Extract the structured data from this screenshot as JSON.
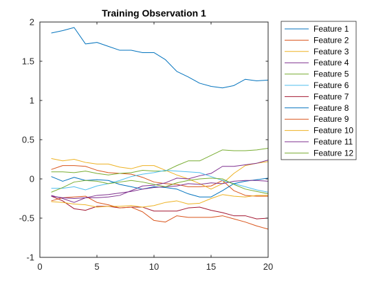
{
  "chart_data": {
    "type": "line",
    "title": "Training Observation 1",
    "xlabel": "",
    "ylabel": "",
    "xlim": [
      0,
      20
    ],
    "ylim": [
      -1,
      2
    ],
    "xticks": [
      0,
      5,
      10,
      15,
      20
    ],
    "yticks": [
      -1,
      -0.5,
      0,
      0.5,
      1,
      1.5,
      2
    ],
    "xtick_labels": [
      "0",
      "5",
      "10",
      "15",
      "20"
    ],
    "ytick_labels": [
      "-1",
      "-0.5",
      "0",
      "0.5",
      "1",
      "1.5",
      "2"
    ],
    "grid": false,
    "legend_position": "outside-right-top",
    "x": [
      1,
      2,
      3,
      4,
      5,
      6,
      7,
      8,
      9,
      10,
      11,
      12,
      13,
      14,
      15,
      16,
      17,
      18,
      19,
      20
    ],
    "series": [
      {
        "name": "Feature 1",
        "color": "#0072BD",
        "values": [
          1.86,
          1.89,
          1.93,
          1.72,
          1.74,
          1.69,
          1.64,
          1.64,
          1.61,
          1.61,
          1.52,
          1.37,
          1.3,
          1.22,
          1.18,
          1.16,
          1.19,
          1.27,
          1.25,
          1.26
        ]
      },
      {
        "name": "Feature 2",
        "color": "#D95319",
        "values": [
          0.12,
          0.17,
          0.17,
          0.16,
          0.11,
          0.08,
          0.07,
          0.06,
          0.02,
          -0.04,
          -0.06,
          -0.07,
          -0.1,
          -0.1,
          -0.09,
          -0.02,
          -0.15,
          -0.21,
          -0.22,
          -0.22
        ]
      },
      {
        "name": "Feature 3",
        "color": "#EDB120",
        "values": [
          0.26,
          0.23,
          0.25,
          0.21,
          0.19,
          0.19,
          0.15,
          0.13,
          0.17,
          0.17,
          0.11,
          0.05,
          0.0,
          -0.06,
          -0.13,
          -0.06,
          0.07,
          0.17,
          0.2,
          0.22
        ]
      },
      {
        "name": "Feature 4",
        "color": "#7E2F8E",
        "values": [
          -0.21,
          -0.25,
          -0.3,
          -0.24,
          -0.24,
          -0.23,
          -0.21,
          -0.15,
          -0.09,
          -0.08,
          -0.05,
          0.01,
          0.0,
          0.04,
          0.07,
          0.16,
          0.16,
          0.18,
          0.2,
          0.24
        ]
      },
      {
        "name": "Feature 5",
        "color": "#77AC30",
        "values": [
          0.09,
          0.09,
          0.08,
          0.1,
          0.07,
          0.05,
          0.07,
          0.08,
          0.11,
          0.1,
          0.1,
          0.17,
          0.23,
          0.23,
          0.3,
          0.37,
          0.36,
          0.36,
          0.37,
          0.39
        ]
      },
      {
        "name": "Feature 6",
        "color": "#4DBEEE",
        "values": [
          -0.12,
          -0.12,
          -0.1,
          -0.14,
          -0.09,
          -0.06,
          -0.02,
          0.03,
          0.06,
          0.08,
          0.11,
          0.1,
          0.09,
          0.08,
          0.03,
          -0.02,
          -0.06,
          -0.1,
          -0.14,
          -0.17
        ]
      },
      {
        "name": "Feature 7",
        "color": "#A2142F",
        "values": [
          -0.22,
          -0.28,
          -0.38,
          -0.4,
          -0.35,
          -0.35,
          -0.37,
          -0.36,
          -0.36,
          -0.41,
          -0.41,
          -0.41,
          -0.37,
          -0.36,
          -0.4,
          -0.43,
          -0.47,
          -0.47,
          -0.51,
          -0.5
        ]
      },
      {
        "name": "Feature 8",
        "color": "#0072BD",
        "values": [
          0.03,
          -0.03,
          0.02,
          -0.02,
          -0.01,
          -0.02,
          -0.07,
          -0.1,
          -0.13,
          -0.1,
          -0.11,
          -0.13,
          -0.19,
          -0.23,
          -0.23,
          -0.15,
          -0.06,
          -0.03,
          -0.01,
          0.01
        ]
      },
      {
        "name": "Feature 9",
        "color": "#D95319",
        "values": [
          -0.28,
          -0.24,
          -0.23,
          -0.22,
          -0.3,
          -0.33,
          -0.37,
          -0.36,
          -0.42,
          -0.53,
          -0.55,
          -0.47,
          -0.49,
          -0.49,
          -0.49,
          -0.47,
          -0.51,
          -0.55,
          -0.6,
          -0.64
        ]
      },
      {
        "name": "Feature 10",
        "color": "#EDB120",
        "values": [
          -0.29,
          -0.3,
          -0.32,
          -0.33,
          -0.36,
          -0.35,
          -0.35,
          -0.34,
          -0.36,
          -0.34,
          -0.3,
          -0.28,
          -0.32,
          -0.31,
          -0.25,
          -0.2,
          -0.22,
          -0.23,
          -0.21,
          -0.21
        ]
      },
      {
        "name": "Feature 11",
        "color": "#7E2F8E",
        "values": [
          -0.22,
          -0.24,
          -0.25,
          -0.24,
          -0.21,
          -0.2,
          -0.18,
          -0.16,
          -0.13,
          -0.11,
          -0.1,
          -0.09,
          -0.06,
          -0.07,
          -0.05,
          -0.06,
          -0.03,
          -0.02,
          -0.02,
          -0.03
        ]
      },
      {
        "name": "Feature 12",
        "color": "#77AC30",
        "values": [
          -0.17,
          -0.11,
          -0.04,
          -0.02,
          -0.03,
          -0.06,
          -0.04,
          -0.02,
          -0.04,
          -0.07,
          -0.1,
          -0.05,
          -0.02,
          0.0,
          0.01,
          0.0,
          -0.07,
          -0.13,
          -0.16,
          -0.19
        ]
      }
    ]
  }
}
